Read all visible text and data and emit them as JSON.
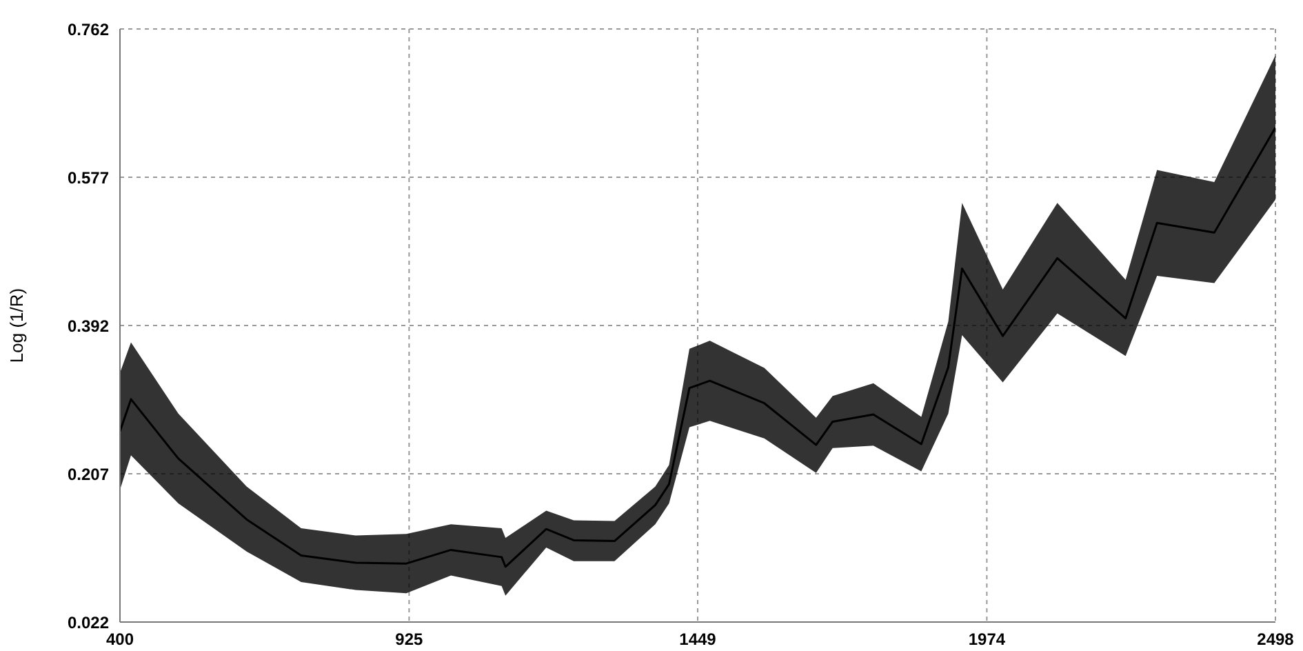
{
  "chart_data": {
    "type": "line",
    "ylabel": "Log (1/R)",
    "x": [
      400,
      420,
      506,
      630,
      729,
      828,
      920,
      1001,
      1093,
      1100,
      1174,
      1224,
      1298,
      1372,
      1397,
      1434,
      1471,
      1570,
      1664,
      1694,
      1768,
      1855,
      1904,
      1929,
      2003,
      2102,
      2226,
      2283,
      2387,
      2498
    ],
    "series": [
      {
        "color": "#000000",
        "values": [
          0.26,
          0.3,
          0.226,
          0.15,
          0.105,
          0.096,
          0.095,
          0.112,
          0.103,
          0.091,
          0.138,
          0.124,
          0.123,
          0.168,
          0.194,
          0.314,
          0.323,
          0.295,
          0.243,
          0.272,
          0.281,
          0.244,
          0.34,
          0.463,
          0.379,
          0.476,
          0.401,
          0.52,
          0.508,
          0.639
        ],
        "lower": [
          0.187,
          0.23,
          0.17,
          0.11,
          0.072,
          0.062,
          0.058,
          0.08,
          0.067,
          0.055,
          0.115,
          0.098,
          0.098,
          0.144,
          0.17,
          0.265,
          0.273,
          0.251,
          0.208,
          0.239,
          0.242,
          0.21,
          0.282,
          0.38,
          0.321,
          0.407,
          0.354,
          0.454,
          0.445,
          0.549
        ],
        "upper": [
          0.333,
          0.371,
          0.282,
          0.191,
          0.139,
          0.13,
          0.132,
          0.144,
          0.139,
          0.127,
          0.161,
          0.149,
          0.148,
          0.191,
          0.218,
          0.363,
          0.373,
          0.339,
          0.277,
          0.304,
          0.32,
          0.278,
          0.397,
          0.545,
          0.437,
          0.545,
          0.449,
          0.586,
          0.571,
          0.729
        ]
      }
    ],
    "xlim": [
      400,
      2498
    ],
    "xticks": [
      400,
      925,
      1449,
      1974,
      2498
    ],
    "ylim": [
      0.022,
      0.762
    ],
    "yticks": [
      0.022,
      0.207,
      0.392,
      0.577,
      0.762
    ],
    "grid": true,
    "line_style": "solid"
  }
}
